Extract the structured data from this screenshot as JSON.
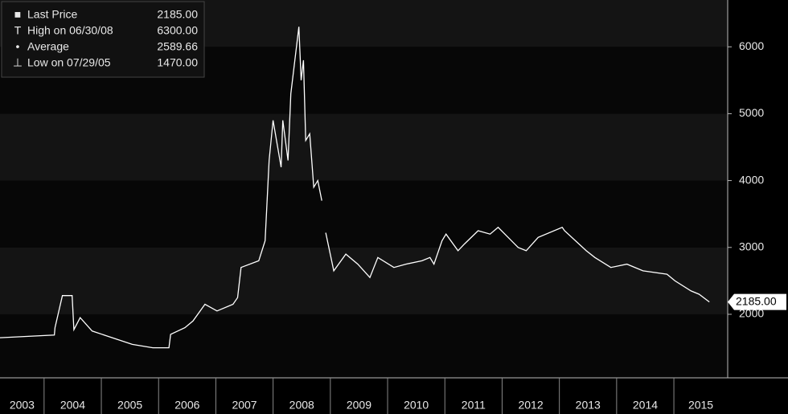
{
  "chart_data": {
    "type": "line",
    "legend": [
      {
        "label": "Last Price",
        "value": "2185.00"
      },
      {
        "label": "High on 06/30/08",
        "value": "6300.00"
      },
      {
        "label": "Average",
        "value": "2589.66"
      },
      {
        "label": "Low on 07/29/05",
        "value": "1470.00"
      }
    ],
    "categories": [
      "2003",
      "2004",
      "2005",
      "2006",
      "2007",
      "2008",
      "2009",
      "2010",
      "2011",
      "2012",
      "2013",
      "2014",
      "2015"
    ],
    "x": [
      2003.23,
      2004.18,
      2004.19,
      2004.32,
      2004.49,
      2004.52,
      2004.63,
      2004.84,
      2005.19,
      2005.54,
      2005.9,
      2006.18,
      2006.21,
      2006.46,
      2006.6,
      2006.81,
      2007.02,
      2007.3,
      2007.38,
      2007.44,
      2007.75,
      2007.86,
      2007.93,
      2008.0,
      2008.14,
      2008.17,
      2008.26,
      2008.31,
      2008.45,
      2008.49,
      2008.53,
      2008.57,
      2008.64,
      2008.71,
      2008.78,
      2008.85,
      2008.89,
      2008.92,
      2009.06,
      2009.27,
      2009.48,
      2009.69,
      2009.83,
      2010.11,
      2010.32,
      2010.6,
      2010.74,
      2010.81,
      2010.95,
      2011.02,
      2011.23,
      2011.34,
      2011.58,
      2011.79,
      2011.93,
      2012.28,
      2012.42,
      2012.63,
      2013.05,
      2013.09,
      2013.47,
      2013.62,
      2013.9,
      2014.18,
      2014.46,
      2014.88,
      2015.02,
      2015.3,
      2015.44,
      2015.62
    ],
    "series": [
      {
        "name": "Last Price",
        "color": "#ffffff",
        "values": [
          1650,
          1690,
          1800,
          2280,
          2280,
          1770,
          1950,
          1750,
          1650,
          1550,
          1500,
          1500,
          1700,
          1800,
          1900,
          2150,
          2050,
          2150,
          2250,
          2700,
          2800,
          3100,
          4300,
          4900,
          4200,
          4900,
          4300,
          5300,
          6300,
          5500,
          5800,
          4600,
          4700,
          3900,
          4000,
          3700,
          null,
          3220,
          2650,
          2900,
          2750,
          2550,
          2850,
          2700,
          2750,
          2800,
          2850,
          2750,
          3100,
          3200,
          2950,
          3050,
          3250,
          3200,
          3300,
          3000,
          2950,
          3150,
          3300,
          3250,
          2950,
          2850,
          2700,
          2750,
          2650,
          2600,
          2500,
          2350,
          2300,
          2185
        ]
      }
    ],
    "xlim": [
      2003.23,
      2015.94
    ],
    "xticks": [
      2004,
      2005,
      2006,
      2007,
      2008,
      2009,
      2010,
      2011,
      2012,
      2013,
      2014,
      2015
    ],
    "ylim": [
      1050,
      6700
    ],
    "yticks": [
      2000,
      3000,
      4000,
      5000,
      6000
    ]
  }
}
